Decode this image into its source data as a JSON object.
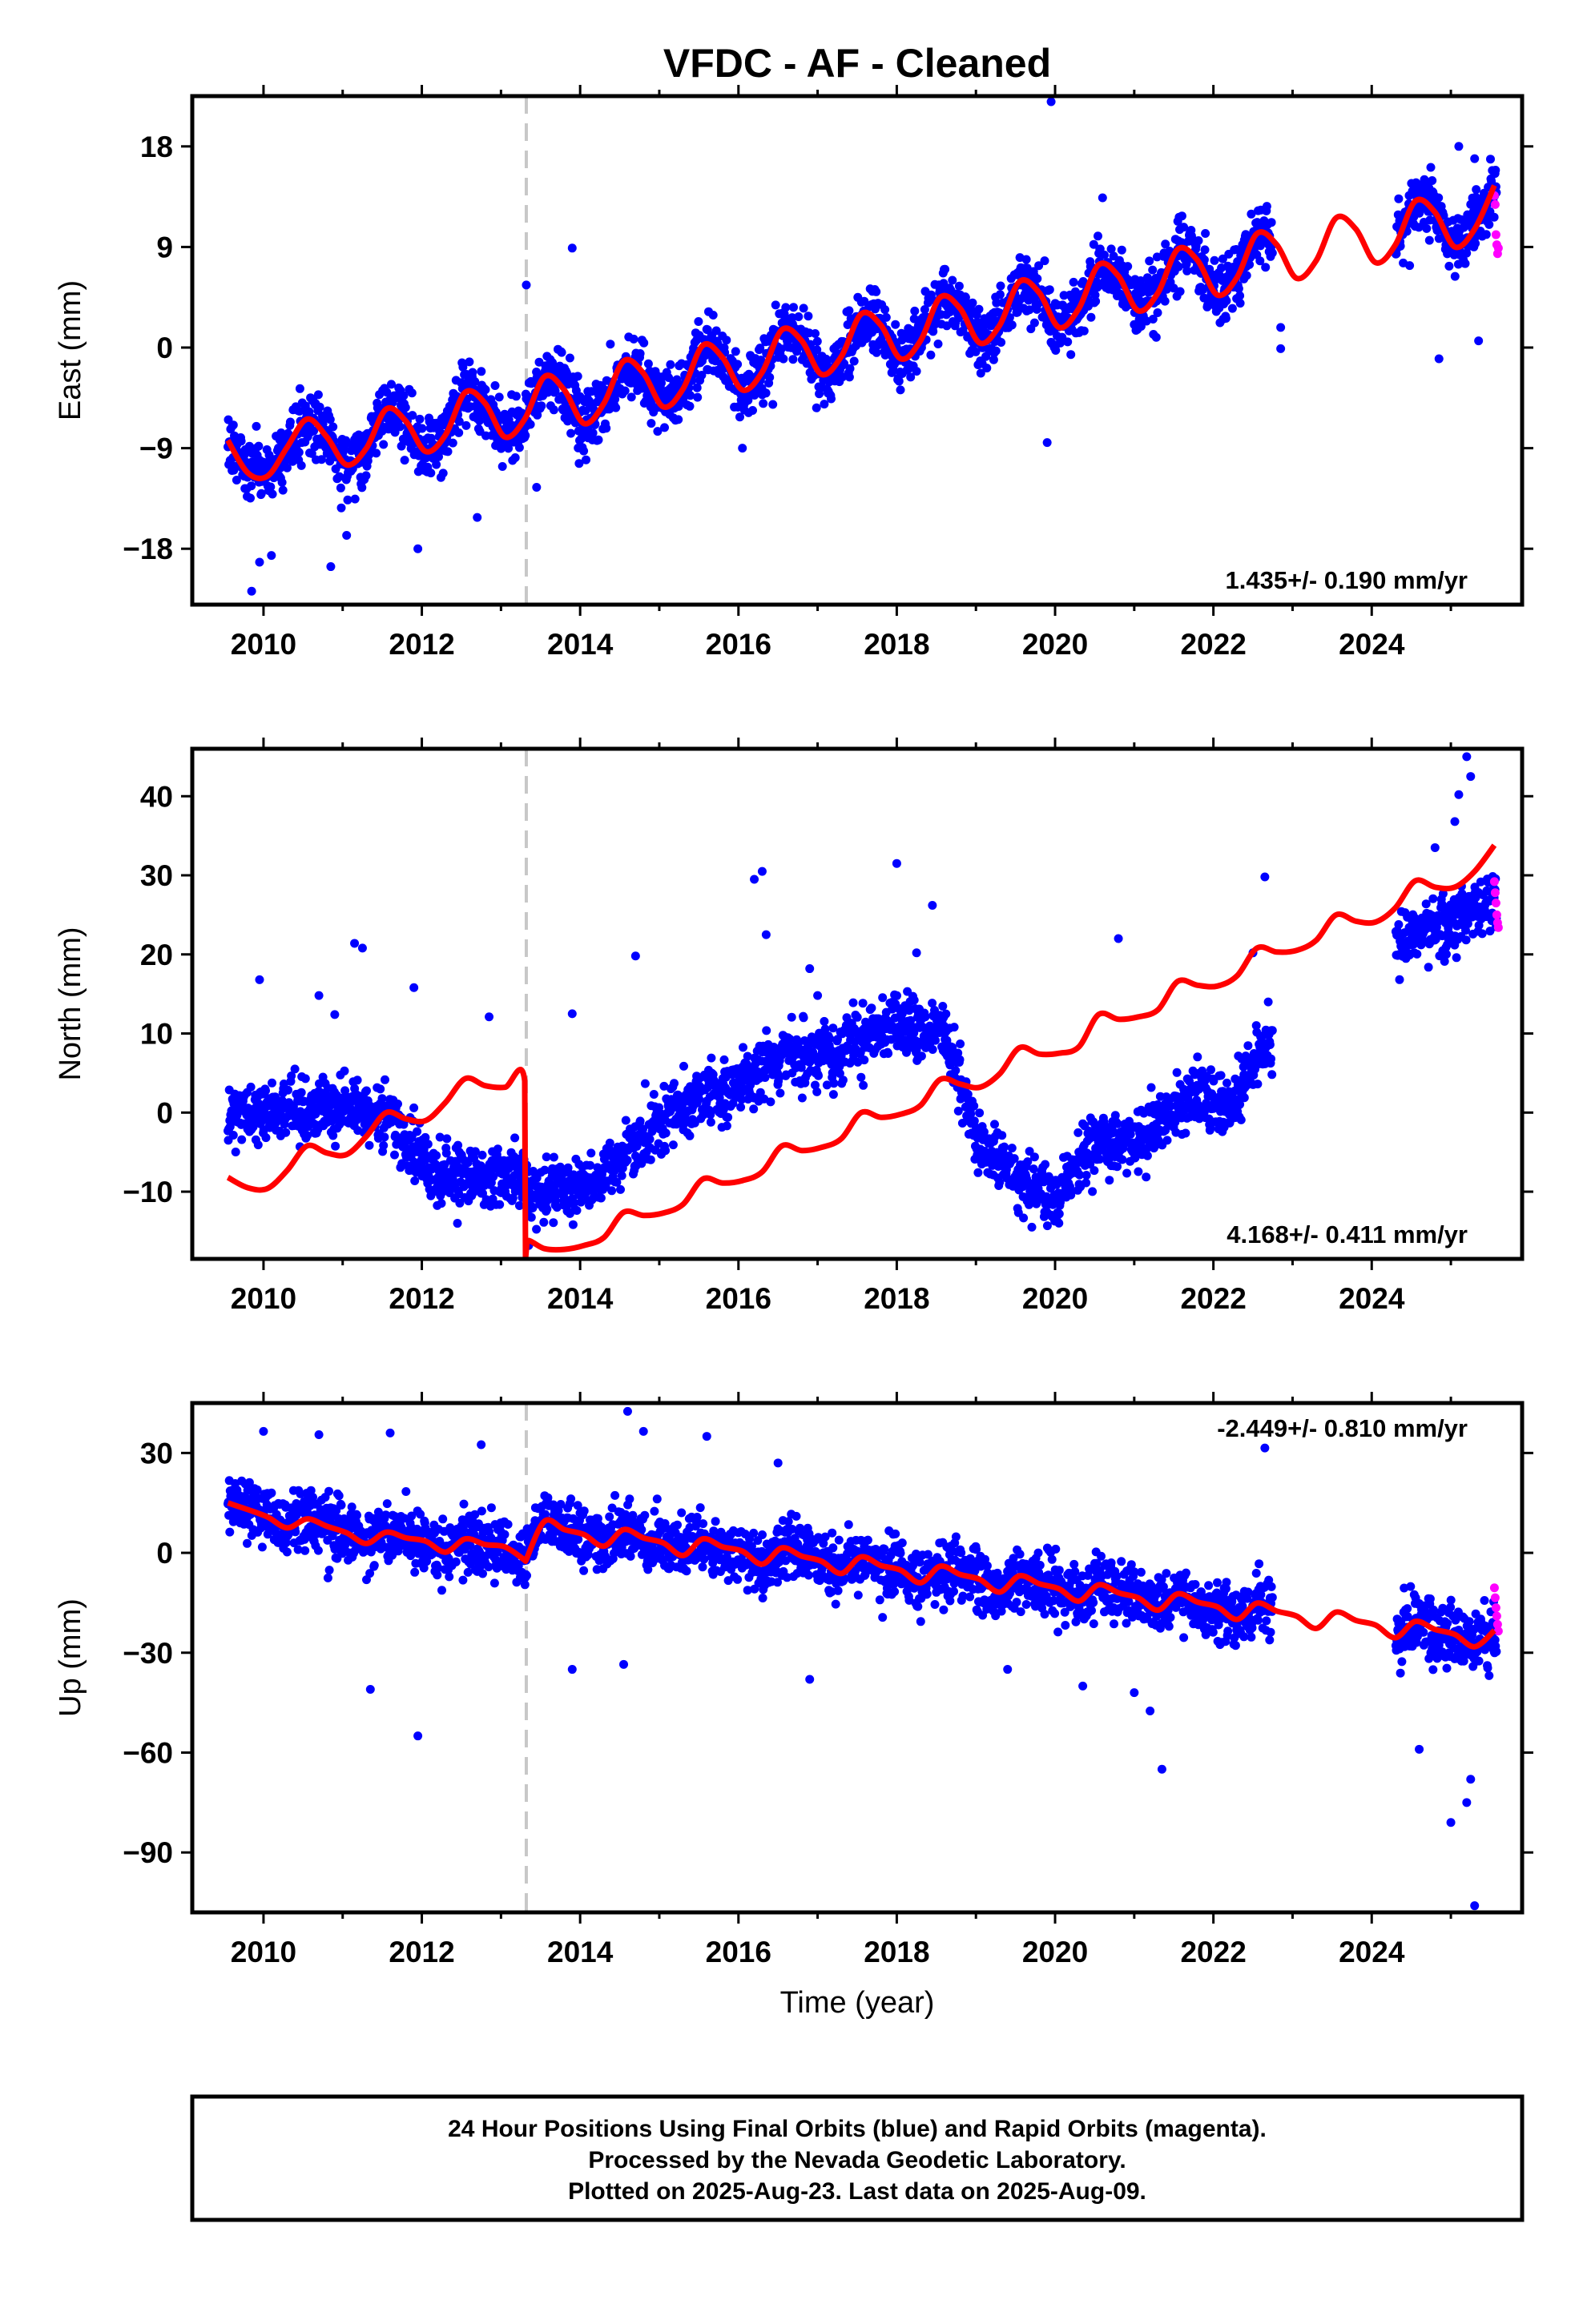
{
  "title": "VFDC  - AF - Cleaned",
  "xlabel": "Time (year)",
  "x_ticks": [
    "2010",
    "2012",
    "2014",
    "2016",
    "2018",
    "2020",
    "2022",
    "2024"
  ],
  "footer": {
    "line1": "24 Hour Positions Using Final Orbits (blue) and Rapid Orbits (magenta).",
    "line2": "Processed by the Nevada Geodetic Laboratory.",
    "line3": "Plotted on 2025-Aug-23. Last data on 2025-Aug-09."
  },
  "colors": {
    "final_orbits": "#0000ff",
    "rapid_orbits": "#ff00ff",
    "model": "#ff0000",
    "event_line": "#c8c8c8",
    "frame": "#000000"
  },
  "chart_data": [
    {
      "type": "scatter",
      "component": "east",
      "ylabel": "East (mm)",
      "y_ticks": [
        "18",
        "9",
        "0",
        "−9",
        "−18"
      ],
      "y_tick_values": [
        18,
        9,
        0,
        -9,
        -18
      ],
      "xlim": [
        2009.1,
        2025.9
      ],
      "ylim": [
        -23,
        22.5
      ],
      "grid": false,
      "rate_label": "1.435+/- 0.190 mm/yr",
      "rate_position": "bottom-right",
      "event_line_x": 2013.32,
      "model": {
        "trend_mm_per_yr": 1.435,
        "x": [
          2009.55,
          2009.8,
          2010.05,
          2010.3,
          2010.55,
          2010.8,
          2011.05,
          2011.3,
          2011.55,
          2011.8,
          2012.05,
          2012.3,
          2012.55,
          2012.8,
          2013.05,
          2013.3,
          2013.55,
          2013.8,
          2014.05,
          2014.3,
          2014.55,
          2014.8,
          2015.05,
          2015.3,
          2015.55,
          2015.8,
          2016.05,
          2016.3,
          2016.55,
          2016.8,
          2017.05,
          2017.3,
          2017.55,
          2017.8,
          2018.05,
          2018.3,
          2018.55,
          2018.8,
          2019.05,
          2019.3,
          2019.55,
          2019.8,
          2020.05,
          2020.3,
          2020.55,
          2020.8,
          2021.05,
          2021.3,
          2021.55,
          2021.8,
          2022.05,
          2022.3,
          2022.55,
          2022.8,
          2023.05,
          2023.3,
          2023.55,
          2023.8,
          2024.05,
          2024.3,
          2024.55,
          2024.8,
          2025.05,
          2025.3,
          2025.55
        ],
        "y": [
          -8.3,
          -11.2,
          -11.5,
          -8.9,
          -6.4,
          -8.0,
          -10.5,
          -9.0,
          -5.5,
          -6.6,
          -9.3,
          -7.8,
          -4.0,
          -5.0,
          -8.0,
          -6.4,
          -2.6,
          -3.8,
          -6.8,
          -5.0,
          -1.2,
          -2.3,
          -5.3,
          -3.7,
          0.2,
          -0.9,
          -3.8,
          -2.2,
          1.6,
          0.6,
          -2.4,
          -0.8,
          3.0,
          2.0,
          -1.0,
          0.6,
          4.5,
          3.5,
          0.4,
          2.0,
          5.9,
          4.9,
          1.8,
          3.5,
          7.4,
          6.4,
          3.3,
          4.9,
          8.8,
          7.8,
          4.7,
          6.3,
          10.2,
          9.2,
          6.2,
          7.8,
          11.6,
          10.6,
          7.6,
          9.2,
          13.1,
          12.1,
          9.0,
          10.6,
          14.5
        ]
      },
      "final_orbits_outliers": [
        [
          2009.85,
          -21.8
        ],
        [
          2009.95,
          -19.2
        ],
        [
          2010.1,
          -18.6
        ],
        [
          2010.85,
          -19.6
        ],
        [
          2011.05,
          -16.8
        ],
        [
          2011.95,
          -18.0
        ],
        [
          2012.7,
          -15.2
        ],
        [
          2013.32,
          5.6
        ],
        [
          2013.45,
          -12.5
        ],
        [
          2013.9,
          8.9
        ],
        [
          2016.05,
          -9.0
        ],
        [
          2019.9,
          -8.5
        ],
        [
          2019.95,
          22.0
        ],
        [
          2020.6,
          13.4
        ],
        [
          2021.55,
          11.3
        ],
        [
          2022.85,
          -0.1
        ],
        [
          2022.85,
          1.8
        ],
        [
          2024.85,
          -1.0
        ],
        [
          2025.1,
          18.0
        ],
        [
          2025.3,
          16.9
        ],
        [
          2025.35,
          0.6
        ]
      ],
      "rapid_orbits": [
        [
          2025.55,
          13.6
        ],
        [
          2025.56,
          12.8
        ],
        [
          2025.57,
          10.1
        ],
        [
          2025.58,
          9.2
        ],
        [
          2025.59,
          8.4
        ],
        [
          2025.6,
          8.9
        ]
      ]
    },
    {
      "type": "scatter",
      "component": "north",
      "ylabel": "North (mm)",
      "y_ticks": [
        "40",
        "30",
        "20",
        "10",
        "0",
        "−10"
      ],
      "y_tick_values": [
        40,
        30,
        20,
        10,
        0,
        -10
      ],
      "xlim": [
        2009.1,
        2025.9
      ],
      "ylim": [
        -18.5,
        46
      ],
      "grid": false,
      "rate_label": "4.168+/- 0.411 mm/yr",
      "rate_position": "bottom-right",
      "event_line_x": 2013.32,
      "model": {
        "trend_mm_per_yr": 4.168,
        "x": [
          2009.55,
          2009.8,
          2010.05,
          2010.3,
          2010.55,
          2010.8,
          2011.05,
          2011.3,
          2011.55,
          2011.8,
          2012.05,
          2012.3,
          2012.55,
          2012.8,
          2013.05,
          2013.3,
          2013.31,
          2013.33,
          2013.55,
          2013.8,
          2014.05,
          2014.3,
          2014.55,
          2014.8,
          2015.05,
          2015.3,
          2015.55,
          2015.8,
          2016.05,
          2016.3,
          2016.55,
          2016.8,
          2017.05,
          2017.3,
          2017.55,
          2017.8,
          2018.05,
          2018.3,
          2018.55,
          2018.8,
          2019.05,
          2019.3,
          2019.55,
          2019.8,
          2020.05,
          2020.3,
          2020.55,
          2020.8,
          2021.05,
          2021.3,
          2021.55,
          2021.8,
          2022.05,
          2022.3,
          2022.55,
          2022.8,
          2023.05,
          2023.3,
          2023.55,
          2023.8,
          2024.05,
          2024.3,
          2024.55,
          2024.8,
          2025.05,
          2025.3,
          2025.55
        ],
        "y": [
          -8.2,
          -9.5,
          -9.6,
          -7.3,
          -4.2,
          -5.1,
          -5.3,
          -3.0,
          0.0,
          -0.8,
          -1.0,
          1.3,
          4.3,
          3.4,
          3.2,
          4.0,
          -18.5,
          -16.2,
          -17.2,
          -17.3,
          -16.8,
          -15.8,
          -12.6,
          -13.0,
          -12.7,
          -11.6,
          -8.4,
          -8.9,
          -8.6,
          -7.5,
          -4.2,
          -4.8,
          -4.4,
          -3.3,
          0.0,
          -0.6,
          -0.2,
          0.9,
          4.2,
          3.6,
          3.2,
          4.9,
          8.2,
          7.4,
          7.5,
          8.3,
          12.4,
          11.8,
          12.1,
          13.0,
          16.6,
          16.1,
          16.0,
          17.3,
          20.8,
          20.3,
          20.5,
          21.8,
          25.0,
          24.2,
          24.1,
          25.9,
          29.3,
          28.5,
          28.5,
          30.5,
          33.8
        ]
      },
      "final_orbits_outliers": [
        [
          2009.95,
          16.8
        ],
        [
          2010.7,
          14.8
        ],
        [
          2010.9,
          12.4
        ],
        [
          2011.15,
          21.4
        ],
        [
          2011.25,
          20.8
        ],
        [
          2011.9,
          15.8
        ],
        [
          2012.45,
          -14.0
        ],
        [
          2012.85,
          12.1
        ],
        [
          2013.35,
          -16.8
        ],
        [
          2013.9,
          12.5
        ],
        [
          2014.7,
          19.8
        ],
        [
          2016.2,
          29.5
        ],
        [
          2016.3,
          30.5
        ],
        [
          2016.35,
          22.5
        ],
        [
          2016.9,
          18.2
        ],
        [
          2017.0,
          14.8
        ],
        [
          2018.0,
          31.5
        ],
        [
          2018.25,
          20.2
        ],
        [
          2018.45,
          26.2
        ],
        [
          2020.3,
          -5.0
        ],
        [
          2020.8,
          22.0
        ],
        [
          2022.5,
          20.2
        ],
        [
          2022.65,
          29.8
        ],
        [
          2025.2,
          45.0
        ],
        [
          2025.25,
          42.5
        ],
        [
          2025.1,
          40.2
        ],
        [
          2025.05,
          36.8
        ],
        [
          2024.8,
          33.5
        ]
      ],
      "rapid_orbits": [
        [
          2025.55,
          29.2
        ],
        [
          2025.56,
          27.8
        ],
        [
          2025.57,
          26.5
        ],
        [
          2025.58,
          25.0
        ],
        [
          2025.59,
          24.0
        ],
        [
          2025.6,
          23.4
        ]
      ]
    },
    {
      "type": "scatter",
      "component": "up",
      "ylabel": "Up (mm)",
      "y_ticks": [
        "30",
        "0",
        "−30",
        "−60",
        "−90"
      ],
      "y_tick_values": [
        30,
        0,
        -30,
        -60,
        -90
      ],
      "xlim": [
        2009.1,
        2025.9
      ],
      "ylim": [
        -108,
        45
      ],
      "grid": false,
      "rate_label": "-2.449+/- 0.810 mm/yr",
      "rate_position": "top-right",
      "event_line_x": 2013.32,
      "model": {
        "trend_mm_per_yr": -2.449,
        "x": [
          2009.55,
          2009.8,
          2010.05,
          2010.3,
          2010.55,
          2010.8,
          2011.05,
          2011.3,
          2011.55,
          2011.8,
          2012.05,
          2012.3,
          2012.55,
          2012.8,
          2013.05,
          2013.3,
          2013.31,
          2013.55,
          2013.8,
          2014.05,
          2014.3,
          2014.55,
          2014.8,
          2015.05,
          2015.3,
          2015.55,
          2015.8,
          2016.05,
          2016.3,
          2016.55,
          2016.8,
          2017.05,
          2017.3,
          2017.55,
          2017.8,
          2018.05,
          2018.3,
          2018.55,
          2018.8,
          2019.05,
          2019.3,
          2019.55,
          2019.8,
          2020.05,
          2020.3,
          2020.55,
          2020.8,
          2021.05,
          2021.3,
          2021.55,
          2021.8,
          2022.05,
          2022.3,
          2022.55,
          2022.8,
          2023.05,
          2023.3,
          2023.55,
          2023.8,
          2024.05,
          2024.3,
          2024.55,
          2024.8,
          2025.05,
          2025.3,
          2025.55
        ],
        "y": [
          15.0,
          13.0,
          10.8,
          7.5,
          10.2,
          8.0,
          6.0,
          2.8,
          6.2,
          4.5,
          3.5,
          0.2,
          4.2,
          2.5,
          1.8,
          -2.2,
          -2.5,
          9.5,
          7.0,
          5.5,
          2.0,
          7.0,
          4.5,
          3.0,
          -0.8,
          4.2,
          1.8,
          0.5,
          -3.4,
          1.5,
          -1.0,
          -2.5,
          -6.2,
          -1.2,
          -3.8,
          -5.2,
          -9.0,
          -4.0,
          -6.5,
          -8.0,
          -11.8,
          -6.9,
          -9.3,
          -10.8,
          -14.5,
          -9.6,
          -12.0,
          -13.5,
          -17.2,
          -12.3,
          -14.8,
          -16.2,
          -20.0,
          -15.1,
          -17.5,
          -19.0,
          -22.7,
          -17.8,
          -20.3,
          -21.7,
          -25.5,
          -20.6,
          -23.0,
          -24.5,
          -28.2,
          -23.3
        ]
      },
      "final_orbits_outliers": [
        [
          2010.0,
          36.5
        ],
        [
          2010.7,
          35.5
        ],
        [
          2011.35,
          -41.0
        ],
        [
          2011.95,
          -55.0
        ],
        [
          2011.6,
          36.0
        ],
        [
          2012.75,
          32.5
        ],
        [
          2013.9,
          -35.0
        ],
        [
          2014.55,
          -33.5
        ],
        [
          2014.6,
          42.5
        ],
        [
          2014.8,
          36.5
        ],
        [
          2015.6,
          35.0
        ],
        [
          2016.5,
          27.0
        ],
        [
          2016.9,
          -38.0
        ],
        [
          2019.4,
          -35.0
        ],
        [
          2020.35,
          -40.0
        ],
        [
          2021.0,
          -42.0
        ],
        [
          2021.2,
          -47.5
        ],
        [
          2021.35,
          -65.0
        ],
        [
          2022.65,
          31.5
        ],
        [
          2024.6,
          -59.0
        ],
        [
          2025.0,
          -81.0
        ],
        [
          2025.2,
          -75.0
        ],
        [
          2025.3,
          -106.0
        ],
        [
          2025.25,
          -68.0
        ]
      ],
      "rapid_orbits": [
        [
          2025.55,
          -10.5
        ],
        [
          2025.56,
          -13.5
        ],
        [
          2025.57,
          -16.5
        ],
        [
          2025.58,
          -19.0
        ],
        [
          2025.59,
          -21.5
        ],
        [
          2025.6,
          -23.5
        ]
      ]
    }
  ]
}
